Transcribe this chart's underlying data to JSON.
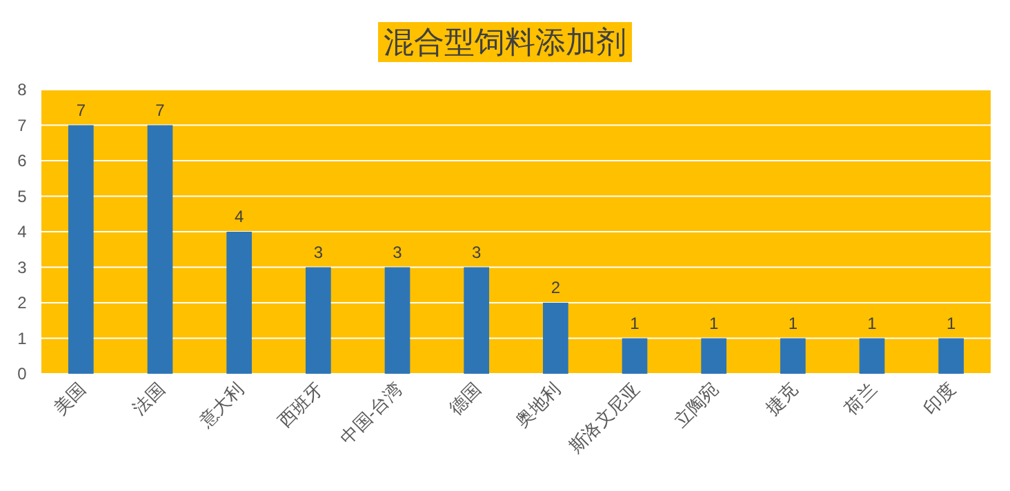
{
  "chart_data": {
    "type": "bar",
    "title": "混合型饲料添加剂",
    "categories": [
      "美国",
      "法国",
      "意大利",
      "西班牙",
      "中国-台湾",
      "德国",
      "奥地利",
      "斯洛文尼亚",
      "立陶宛",
      "捷克",
      "荷兰",
      "印度"
    ],
    "values": [
      7,
      7,
      4,
      3,
      3,
      3,
      2,
      1,
      1,
      1,
      1,
      1
    ],
    "color": "#2e75b6",
    "ylim": [
      0,
      8
    ],
    "yticks": [
      0,
      1,
      2,
      3,
      4,
      5,
      6,
      7,
      8
    ],
    "grid": "y",
    "data_labels": true
  }
}
